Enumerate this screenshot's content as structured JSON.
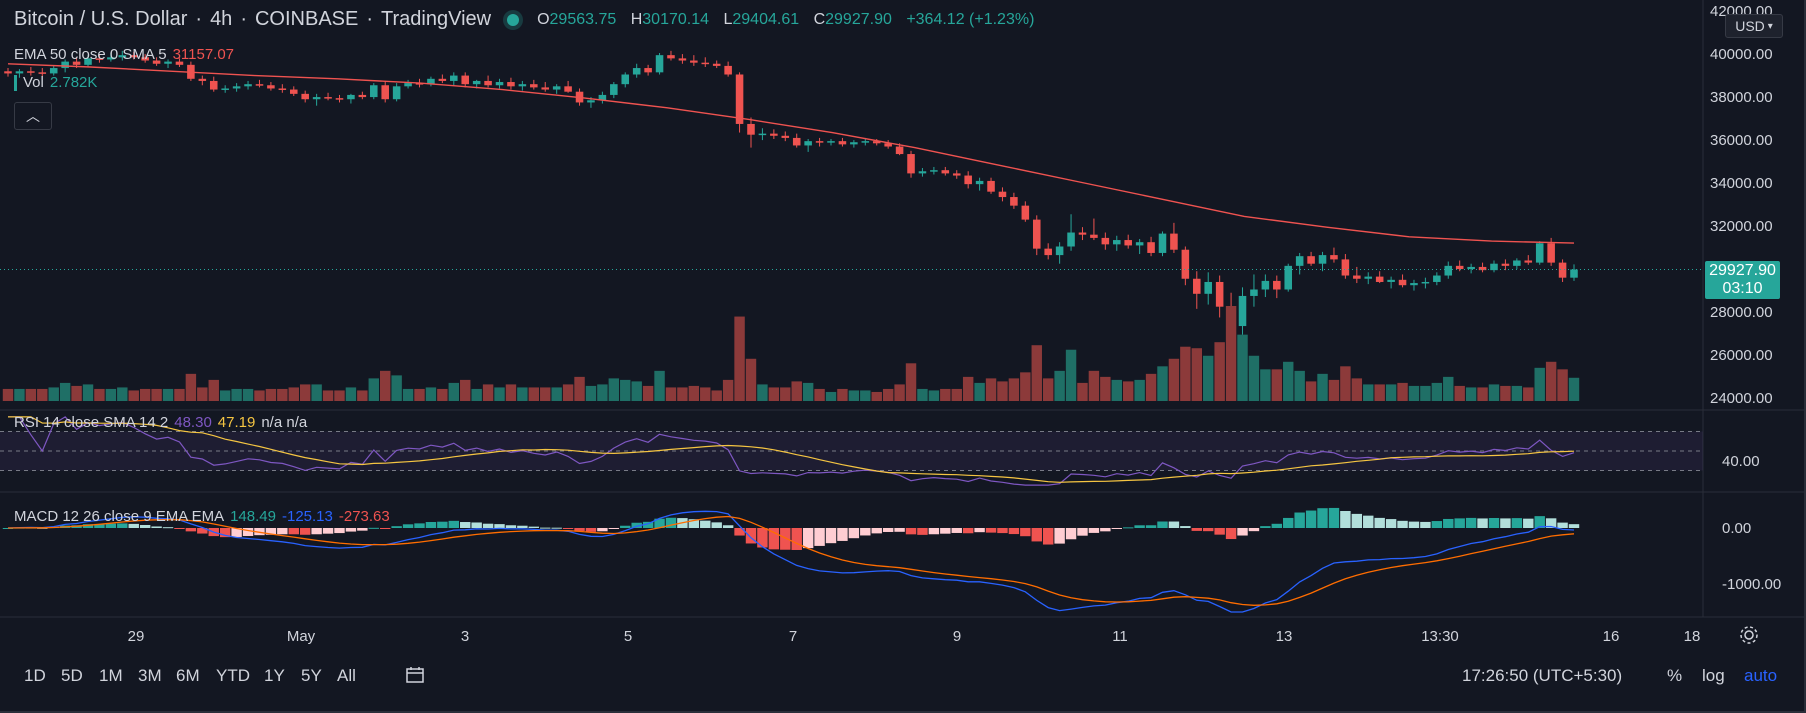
{
  "header": {
    "symbol": "Bitcoin / U.S. Dollar",
    "interval": "4h",
    "exchange": "COINBASE",
    "brand": "TradingView",
    "ohlc": {
      "open_label": "O",
      "open": "29563.75",
      "high_label": "H",
      "high": "30170.14",
      "low_label": "L",
      "low": "29404.61",
      "close_label": "C",
      "close": "29927.90",
      "change": "+364.12 (+1.23%)"
    }
  },
  "indicators": {
    "ema": {
      "label": "EMA 50 close 0 SMA 5",
      "value": "31157.07"
    },
    "vol": {
      "label": "Vol",
      "value": "2.782K"
    },
    "rsi": {
      "label": "RSI 14 close SMA 14 2",
      "rsi_value": "48.30",
      "sma_value": "47.19",
      "extra": "n/a n/a"
    },
    "macd": {
      "label": "MACD 12 26 close 9 EMA EMA",
      "histogram": "148.49",
      "macd": "-125.13",
      "signal": "-273.63"
    }
  },
  "price_scale": {
    "currency": "USD",
    "labels": [
      "42000.00",
      "40000.00",
      "38000.00",
      "36000.00",
      "34000.00",
      "32000.00",
      "28000.00",
      "26000.00",
      "24000.00"
    ],
    "last_price": "29927.90",
    "countdown": "03:10",
    "rsi_label": "40.00",
    "macd_labels": [
      "0.00",
      "-1000.00"
    ]
  },
  "time_axis": [
    "29",
    "May",
    "3",
    "5",
    "7",
    "9",
    "11",
    "13",
    "13:30",
    "16",
    "18"
  ],
  "bottom_bar": {
    "ranges": [
      "1D",
      "5D",
      "1M",
      "3M",
      "6M",
      "YTD",
      "1Y",
      "5Y",
      "All"
    ],
    "clock": "17:26:50 (UTC+5:30)",
    "percent": "%",
    "log": "log",
    "auto": "auto"
  },
  "colors": {
    "background": "#131722",
    "up": "#26a69a",
    "down": "#ef5350",
    "ema": "#ef5350",
    "rsi": "#7e57c2",
    "rsi_sma": "#f5c542",
    "macd": "#2962ff",
    "signal": "#ff6d00",
    "text": "#d1d4dc",
    "grid": "#2a2e39"
  },
  "chart_data": {
    "type": "candlestick",
    "title": "Bitcoin / U.S. Dollar",
    "interval": "4h",
    "price_range": [
      24000,
      42000
    ],
    "candles": [
      {
        "o": 39150,
        "h": 39300,
        "l": 38900,
        "c": 39050
      },
      {
        "o": 39050,
        "h": 39250,
        "l": 38850,
        "c": 39150
      },
      {
        "o": 39150,
        "h": 39350,
        "l": 38950,
        "c": 39100
      },
      {
        "o": 39100,
        "h": 39300,
        "l": 38900,
        "c": 39050
      },
      {
        "o": 39050,
        "h": 39400,
        "l": 38950,
        "c": 39300
      },
      {
        "o": 39300,
        "h": 39700,
        "l": 39100,
        "c": 39600
      },
      {
        "o": 39600,
        "h": 39800,
        "l": 39300,
        "c": 39450
      },
      {
        "o": 39450,
        "h": 39900,
        "l": 39350,
        "c": 39750
      },
      {
        "o": 39750,
        "h": 39950,
        "l": 39550,
        "c": 39700
      },
      {
        "o": 39700,
        "h": 40000,
        "l": 39600,
        "c": 39800
      },
      {
        "o": 39800,
        "h": 40100,
        "l": 39650,
        "c": 39900
      },
      {
        "o": 39900,
        "h": 40050,
        "l": 39700,
        "c": 39800
      },
      {
        "o": 39800,
        "h": 39950,
        "l": 39550,
        "c": 39650
      },
      {
        "o": 39650,
        "h": 39800,
        "l": 39400,
        "c": 39500
      },
      {
        "o": 39500,
        "h": 39700,
        "l": 39300,
        "c": 39600
      },
      {
        "o": 39600,
        "h": 39750,
        "l": 39350,
        "c": 39450
      },
      {
        "o": 39450,
        "h": 39600,
        "l": 38700,
        "c": 38800
      },
      {
        "o": 38800,
        "h": 38950,
        "l": 38500,
        "c": 38700
      },
      {
        "o": 38700,
        "h": 38900,
        "l": 38200,
        "c": 38300
      },
      {
        "o": 38300,
        "h": 38500,
        "l": 38150,
        "c": 38350
      },
      {
        "o": 38350,
        "h": 38600,
        "l": 38200,
        "c": 38450
      },
      {
        "o": 38450,
        "h": 38700,
        "l": 38300,
        "c": 38550
      },
      {
        "o": 38550,
        "h": 38750,
        "l": 38400,
        "c": 38500
      },
      {
        "o": 38500,
        "h": 38650,
        "l": 38250,
        "c": 38350
      },
      {
        "o": 38350,
        "h": 38550,
        "l": 38150,
        "c": 38300
      },
      {
        "o": 38300,
        "h": 38450,
        "l": 38000,
        "c": 38100
      },
      {
        "o": 38100,
        "h": 38250,
        "l": 37700,
        "c": 37850
      },
      {
        "o": 37850,
        "h": 38100,
        "l": 37550,
        "c": 37950
      },
      {
        "o": 37950,
        "h": 38150,
        "l": 37800,
        "c": 37900
      },
      {
        "o": 37900,
        "h": 38050,
        "l": 37700,
        "c": 37850
      },
      {
        "o": 37850,
        "h": 38100,
        "l": 37650,
        "c": 38050
      },
      {
        "o": 38050,
        "h": 38200,
        "l": 37850,
        "c": 37950
      },
      {
        "o": 37950,
        "h": 38600,
        "l": 37850,
        "c": 38500
      },
      {
        "o": 38500,
        "h": 38700,
        "l": 37700,
        "c": 37850
      },
      {
        "o": 37850,
        "h": 38600,
        "l": 37750,
        "c": 38450
      },
      {
        "o": 38450,
        "h": 38750,
        "l": 38350,
        "c": 38600
      },
      {
        "o": 38600,
        "h": 38800,
        "l": 38400,
        "c": 38550
      },
      {
        "o": 38550,
        "h": 38900,
        "l": 38450,
        "c": 38800
      },
      {
        "o": 38800,
        "h": 39000,
        "l": 38600,
        "c": 38700
      },
      {
        "o": 38700,
        "h": 39100,
        "l": 38500,
        "c": 38950
      },
      {
        "o": 38950,
        "h": 39100,
        "l": 38400,
        "c": 38550
      },
      {
        "o": 38550,
        "h": 38750,
        "l": 38350,
        "c": 38700
      },
      {
        "o": 38700,
        "h": 38950,
        "l": 38400,
        "c": 38500
      },
      {
        "o": 38500,
        "h": 38800,
        "l": 38350,
        "c": 38650
      },
      {
        "o": 38650,
        "h": 38850,
        "l": 38300,
        "c": 38450
      },
      {
        "o": 38450,
        "h": 38700,
        "l": 38250,
        "c": 38550
      },
      {
        "o": 38550,
        "h": 38750,
        "l": 38300,
        "c": 38400
      },
      {
        "o": 38400,
        "h": 38650,
        "l": 38200,
        "c": 38300
      },
      {
        "o": 38300,
        "h": 38550,
        "l": 38100,
        "c": 38450
      },
      {
        "o": 38450,
        "h": 38700,
        "l": 38150,
        "c": 38200
      },
      {
        "o": 38200,
        "h": 38350,
        "l": 37550,
        "c": 37700
      },
      {
        "o": 37700,
        "h": 37950,
        "l": 37450,
        "c": 37800
      },
      {
        "o": 37800,
        "h": 38200,
        "l": 37650,
        "c": 38050
      },
      {
        "o": 38050,
        "h": 38650,
        "l": 37900,
        "c": 38550
      },
      {
        "o": 38550,
        "h": 39100,
        "l": 38400,
        "c": 39000
      },
      {
        "o": 39000,
        "h": 39500,
        "l": 38850,
        "c": 39300
      },
      {
        "o": 39300,
        "h": 39450,
        "l": 38950,
        "c": 39100
      },
      {
        "o": 39100,
        "h": 40000,
        "l": 39000,
        "c": 39900
      },
      {
        "o": 39900,
        "h": 40100,
        "l": 39650,
        "c": 39750
      },
      {
        "o": 39750,
        "h": 39950,
        "l": 39500,
        "c": 39650
      },
      {
        "o": 39650,
        "h": 39900,
        "l": 39400,
        "c": 39550
      },
      {
        "o": 39550,
        "h": 39800,
        "l": 39350,
        "c": 39500
      },
      {
        "o": 39500,
        "h": 39650,
        "l": 39300,
        "c": 39400
      },
      {
        "o": 39400,
        "h": 39600,
        "l": 38900,
        "c": 39000
      },
      {
        "o": 39000,
        "h": 39100,
        "l": 36300,
        "c": 36700
      },
      {
        "o": 36700,
        "h": 37000,
        "l": 35600,
        "c": 36200
      },
      {
        "o": 36200,
        "h": 36500,
        "l": 35950,
        "c": 36250
      },
      {
        "o": 36250,
        "h": 36450,
        "l": 36000,
        "c": 36150
      },
      {
        "o": 36150,
        "h": 36350,
        "l": 35900,
        "c": 36050
      },
      {
        "o": 36050,
        "h": 36250,
        "l": 35600,
        "c": 35700
      },
      {
        "o": 35700,
        "h": 36000,
        "l": 35400,
        "c": 35900
      },
      {
        "o": 35900,
        "h": 36050,
        "l": 35650,
        "c": 35850
      },
      {
        "o": 35850,
        "h": 36000,
        "l": 35700,
        "c": 35900
      },
      {
        "o": 35900,
        "h": 36050,
        "l": 35650,
        "c": 35750
      },
      {
        "o": 35750,
        "h": 35950,
        "l": 35600,
        "c": 35850
      },
      {
        "o": 35850,
        "h": 36050,
        "l": 35700,
        "c": 35900
      },
      {
        "o": 35900,
        "h": 36000,
        "l": 35700,
        "c": 35800
      },
      {
        "o": 35800,
        "h": 35950,
        "l": 35550,
        "c": 35650
      },
      {
        "o": 35650,
        "h": 35800,
        "l": 35250,
        "c": 35300
      },
      {
        "o": 35300,
        "h": 35450,
        "l": 34200,
        "c": 34400
      },
      {
        "o": 34400,
        "h": 34650,
        "l": 34250,
        "c": 34500
      },
      {
        "o": 34500,
        "h": 34700,
        "l": 34350,
        "c": 34550
      },
      {
        "o": 34550,
        "h": 34700,
        "l": 34300,
        "c": 34400
      },
      {
        "o": 34400,
        "h": 34550,
        "l": 34150,
        "c": 34300
      },
      {
        "o": 34300,
        "h": 34500,
        "l": 33700,
        "c": 33900
      },
      {
        "o": 33900,
        "h": 34200,
        "l": 33600,
        "c": 34050
      },
      {
        "o": 34050,
        "h": 34200,
        "l": 33450,
        "c": 33550
      },
      {
        "o": 33550,
        "h": 33750,
        "l": 33100,
        "c": 33300
      },
      {
        "o": 33300,
        "h": 33500,
        "l": 32750,
        "c": 32900
      },
      {
        "o": 32900,
        "h": 33100,
        "l": 32150,
        "c": 32250
      },
      {
        "o": 32250,
        "h": 32450,
        "l": 30600,
        "c": 30900
      },
      {
        "o": 30900,
        "h": 31150,
        "l": 30400,
        "c": 30600
      },
      {
        "o": 30600,
        "h": 31200,
        "l": 30200,
        "c": 31000
      },
      {
        "o": 31000,
        "h": 32500,
        "l": 30800,
        "c": 31650
      },
      {
        "o": 31650,
        "h": 31900,
        "l": 31300,
        "c": 31550
      },
      {
        "o": 31550,
        "h": 32300,
        "l": 31300,
        "c": 31400
      },
      {
        "o": 31400,
        "h": 31650,
        "l": 30850,
        "c": 31100
      },
      {
        "o": 31100,
        "h": 31500,
        "l": 30800,
        "c": 31300
      },
      {
        "o": 31300,
        "h": 31550,
        "l": 30900,
        "c": 31050
      },
      {
        "o": 31050,
        "h": 31350,
        "l": 30650,
        "c": 31200
      },
      {
        "o": 31200,
        "h": 31450,
        "l": 30550,
        "c": 30700
      },
      {
        "o": 30700,
        "h": 31700,
        "l": 30550,
        "c": 31600
      },
      {
        "o": 31600,
        "h": 32100,
        "l": 30700,
        "c": 30850
      },
      {
        "o": 30850,
        "h": 31000,
        "l": 29200,
        "c": 29500
      },
      {
        "o": 29500,
        "h": 29850,
        "l": 28100,
        "c": 28800
      },
      {
        "o": 28800,
        "h": 29800,
        "l": 28300,
        "c": 29350
      },
      {
        "o": 29350,
        "h": 29650,
        "l": 27700,
        "c": 28200
      },
      {
        "o": 28200,
        "h": 28850,
        "l": 25700,
        "c": 27300
      },
      {
        "o": 27300,
        "h": 29100,
        "l": 26900,
        "c": 28700
      },
      {
        "o": 28700,
        "h": 29700,
        "l": 28200,
        "c": 29000
      },
      {
        "o": 29000,
        "h": 29700,
        "l": 28650,
        "c": 29400
      },
      {
        "o": 29400,
        "h": 29650,
        "l": 28600,
        "c": 29000
      },
      {
        "o": 29000,
        "h": 30200,
        "l": 28900,
        "c": 30100
      },
      {
        "o": 30100,
        "h": 30700,
        "l": 29700,
        "c": 30550
      },
      {
        "o": 30550,
        "h": 30750,
        "l": 30100,
        "c": 30200
      },
      {
        "o": 30200,
        "h": 30750,
        "l": 29850,
        "c": 30600
      },
      {
        "o": 30600,
        "h": 30950,
        "l": 30250,
        "c": 30400
      },
      {
        "o": 30400,
        "h": 30650,
        "l": 29500,
        "c": 29650
      },
      {
        "o": 29650,
        "h": 30050,
        "l": 29300,
        "c": 29500
      },
      {
        "o": 29500,
        "h": 29800,
        "l": 29250,
        "c": 29600
      },
      {
        "o": 29600,
        "h": 29850,
        "l": 29300,
        "c": 29350
      },
      {
        "o": 29350,
        "h": 29600,
        "l": 29050,
        "c": 29450
      },
      {
        "o": 29450,
        "h": 29700,
        "l": 29100,
        "c": 29200
      },
      {
        "o": 29200,
        "h": 29450,
        "l": 28950,
        "c": 29300
      },
      {
        "o": 29300,
        "h": 29550,
        "l": 29050,
        "c": 29350
      },
      {
        "o": 29350,
        "h": 29800,
        "l": 29200,
        "c": 29650
      },
      {
        "o": 29650,
        "h": 30300,
        "l": 29500,
        "c": 30100
      },
      {
        "o": 30100,
        "h": 30350,
        "l": 29850,
        "c": 29950
      },
      {
        "o": 29950,
        "h": 30200,
        "l": 29750,
        "c": 30050
      },
      {
        "o": 30050,
        "h": 30250,
        "l": 29800,
        "c": 29900
      },
      {
        "o": 29900,
        "h": 30350,
        "l": 29800,
        "c": 30200
      },
      {
        "o": 30200,
        "h": 30400,
        "l": 29900,
        "c": 30100
      },
      {
        "o": 30100,
        "h": 30450,
        "l": 29950,
        "c": 30350
      },
      {
        "o": 30350,
        "h": 30600,
        "l": 30150,
        "c": 30250
      },
      {
        "o": 30250,
        "h": 31250,
        "l": 30150,
        "c": 31150
      },
      {
        "o": 31150,
        "h": 31400,
        "l": 30100,
        "c": 30250
      },
      {
        "o": 30250,
        "h": 30400,
        "l": 29350,
        "c": 29550
      },
      {
        "o": 29550,
        "h": 30170,
        "l": 29400,
        "c": 29930
      }
    ],
    "ema50": [
      39500,
      39350,
      39150,
      38950,
      38800,
      38600,
      38300,
      37900,
      37450,
      36900,
      36300,
      35600,
      34800,
      34000,
      33200,
      32400,
      31900,
      31450,
      31250,
      31157
    ],
    "volume_relative": "bars scale to the local maximum in the volume pane",
    "rsi": {
      "upper_band": 70,
      "lower_band": 30,
      "current": 48.3,
      "sma_current": 47.19
    },
    "macd": {
      "histogram_current": 148.49,
      "macd_current": -125.13,
      "signal_current": -273.63,
      "range": [
        -1500,
        500
      ]
    }
  }
}
